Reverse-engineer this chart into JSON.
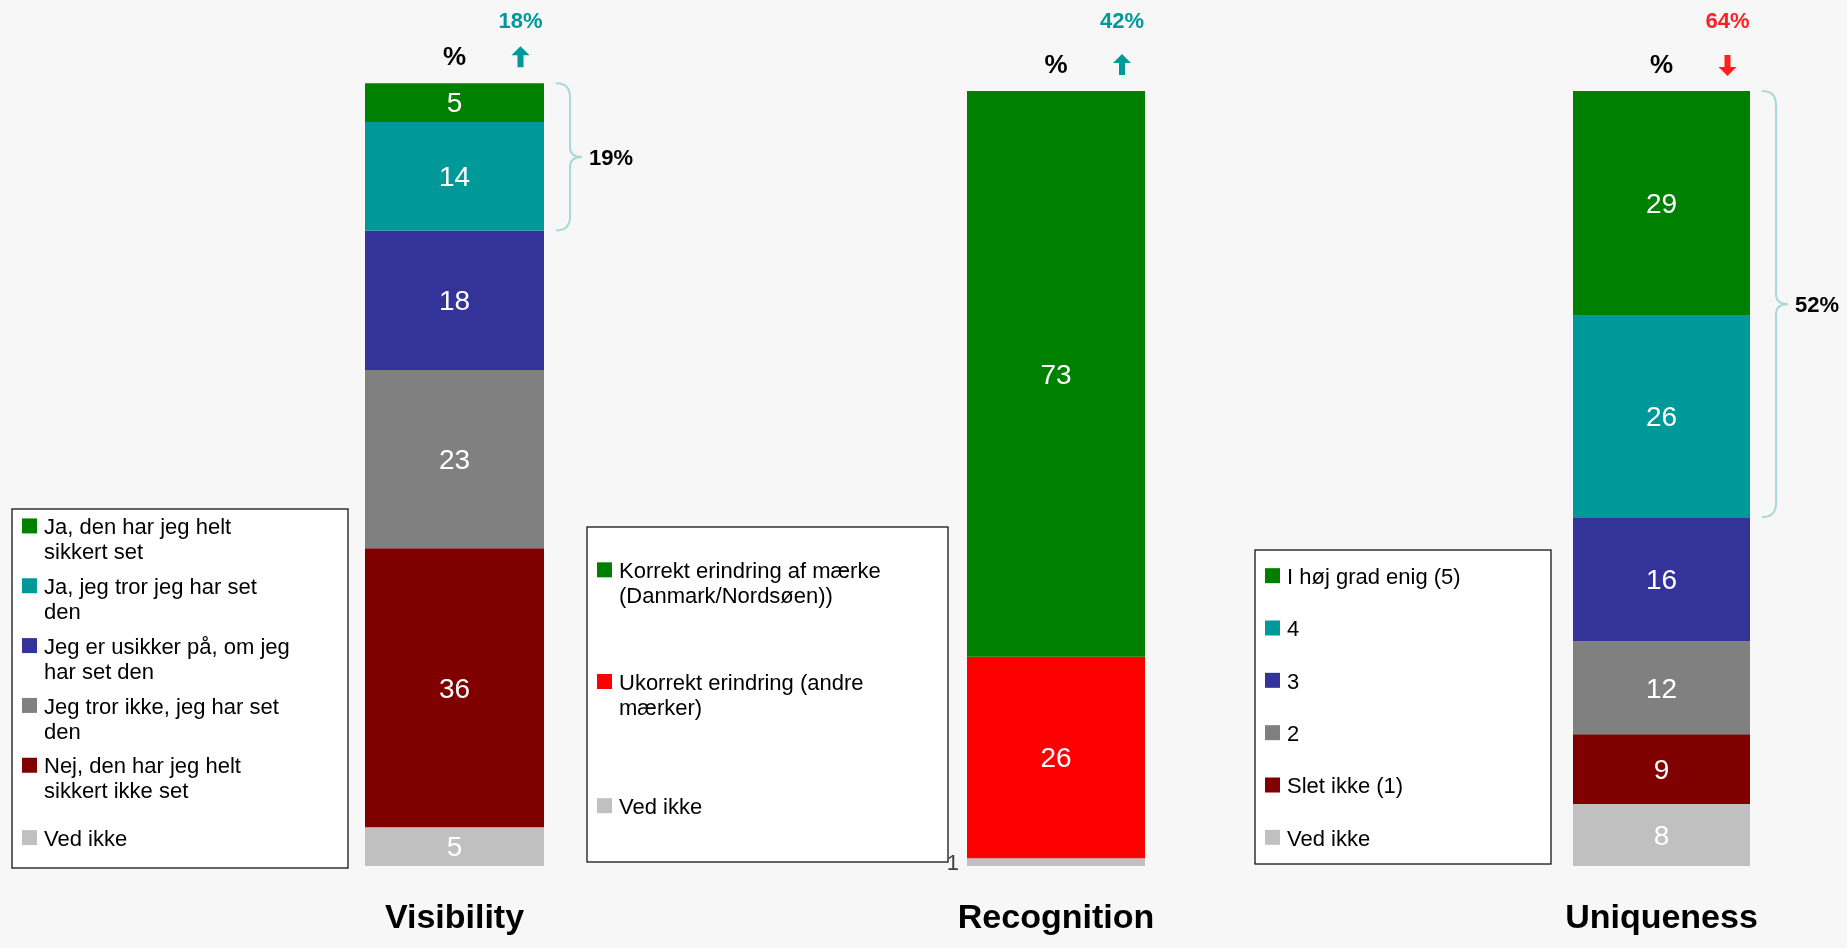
{
  "chart_data": [
    {
      "type": "bar",
      "stacked": true,
      "title": "Visibility",
      "ylabel": "%",
      "categories": [
        null
      ],
      "data_labels": true,
      "legend": "left",
      "annotations": [
        "18%",
        "19%"
      ],
      "series": [
        {
          "name": "Ved ikke",
          "color": "#c0c0c0",
          "values": [
            5
          ]
        },
        {
          "name": "Nej, den har jeg helt sikkert ikke set",
          "color": "#800000",
          "values": [
            36
          ]
        },
        {
          "name": "Jeg tror ikke, jeg har set den",
          "color": "#808080",
          "values": [
            23
          ]
        },
        {
          "name": "Jeg er usikker på, om jeg har set den",
          "color": "#333399",
          "values": [
            18
          ]
        },
        {
          "name": "Ja, jeg tror jeg har set den",
          "color": "#009999",
          "values": [
            14
          ]
        },
        {
          "name": "Ja, den har jeg helt sikkert set",
          "color": "#008000",
          "values": [
            5
          ]
        }
      ]
    },
    {
      "type": "bar",
      "stacked": true,
      "title": "Recognition",
      "ylabel": "%",
      "categories": [
        null
      ],
      "data_labels": true,
      "legend": "left",
      "annotations": [
        "42%"
      ],
      "series": [
        {
          "name": "Ved ikke",
          "color": "#c0c0c0",
          "values": [
            1
          ]
        },
        {
          "name": "Ukorrekt erindring (andre mærker)",
          "color": "#ff0000",
          "values": [
            26
          ]
        },
        {
          "name": "Korrekt erindring af mærke (Danmark/Nordsøen))",
          "color": "#008000",
          "values": [
            73
          ]
        }
      ]
    },
    {
      "type": "bar",
      "stacked": true,
      "title": "Uniqueness",
      "ylabel": "%",
      "categories": [
        null
      ],
      "data_labels": true,
      "legend": "left",
      "annotations": [
        "64%",
        "52%"
      ],
      "series": [
        {
          "name": "Ved ikke",
          "color": "#c0c0c0",
          "values": [
            8
          ]
        },
        {
          "name": "Slet ikke (1)",
          "color": "#800000",
          "values": [
            9
          ]
        },
        {
          "name": "2",
          "color": "#808080",
          "values": [
            12
          ]
        },
        {
          "name": "3",
          "color": "#333399",
          "values": [
            16
          ]
        },
        {
          "name": "4",
          "color": "#009999",
          "values": [
            26
          ]
        },
        {
          "name": "I høj grad enig (5)",
          "color": "#008000",
          "values": [
            29
          ]
        }
      ]
    }
  ]
}
